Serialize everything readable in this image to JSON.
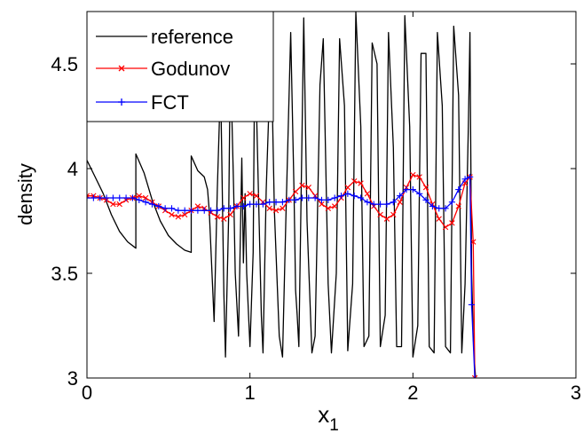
{
  "chart_data": {
    "type": "line",
    "title": "",
    "xlabel": "x",
    "xlabel_subscript": "1",
    "ylabel": "density",
    "xlim": [
      0,
      3
    ],
    "ylim": [
      3,
      4.75
    ],
    "xticks": [
      0,
      1,
      2,
      3
    ],
    "yticks": [
      3,
      3.5,
      4,
      4.5
    ],
    "xtick_labels": [
      "0",
      "1",
      "2",
      "3"
    ],
    "ytick_labels": [
      "3",
      "3.5",
      "4",
      "4.5"
    ],
    "grid": false,
    "legend_position": "top-left",
    "series": [
      {
        "name": "reference",
        "color": "#000000",
        "marker": "none",
        "x": [
          0,
          0.05,
          0.1,
          0.15,
          0.2,
          0.25,
          0.3,
          0.3,
          0.35,
          0.4,
          0.45,
          0.5,
          0.55,
          0.6,
          0.64,
          0.64,
          0.68,
          0.72,
          0.74,
          0.75,
          0.78,
          0.8,
          0.82,
          0.84,
          0.85,
          0.87,
          0.88,
          0.9,
          0.91,
          0.93,
          0.95,
          0.96,
          0.97,
          0.98,
          1.0,
          1.02,
          1.03,
          1.05,
          1.07,
          1.08,
          1.1,
          1.13,
          1.15,
          1.18,
          1.2,
          1.22,
          1.25,
          1.27,
          1.28,
          1.29,
          1.3,
          1.33,
          1.35,
          1.38,
          1.4,
          1.43,
          1.45,
          1.48,
          1.5,
          1.53,
          1.55,
          1.58,
          1.6,
          1.63,
          1.65,
          1.68,
          1.7,
          1.73,
          1.75,
          1.78,
          1.8,
          1.83,
          1.85,
          1.88,
          1.9,
          1.93,
          1.95,
          1.98,
          2.0,
          2.03,
          2.05,
          2.08,
          2.1,
          2.13,
          2.15,
          2.18,
          2.2,
          2.23,
          2.25,
          2.28,
          2.3,
          2.32,
          2.34,
          2.35,
          2.36,
          2.37,
          2.38,
          2.385
        ],
        "y": [
          4.04,
          3.96,
          3.88,
          3.78,
          3.7,
          3.65,
          3.62,
          4.07,
          3.98,
          3.85,
          3.75,
          3.68,
          3.64,
          3.61,
          3.6,
          4.06,
          3.99,
          3.96,
          3.9,
          3.8,
          3.27,
          3.9,
          4.42,
          3.4,
          3.1,
          3.8,
          4.55,
          3.9,
          3.5,
          3.2,
          4.05,
          3.55,
          3.88,
          3.5,
          3.15,
          3.6,
          4.62,
          3.95,
          3.3,
          3.12,
          3.9,
          4.6,
          3.8,
          3.2,
          3.1,
          3.75,
          4.65,
          3.9,
          3.42,
          3.3,
          3.15,
          4.72,
          3.75,
          3.12,
          3.2,
          4.4,
          4.62,
          3.45,
          3.12,
          3.5,
          4.62,
          4.3,
          3.13,
          3.45,
          4.75,
          4.2,
          3.15,
          3.2,
          4.6,
          4.5,
          3.15,
          3.3,
          4.65,
          4.1,
          3.15,
          3.15,
          4.73,
          4.2,
          3.1,
          3.25,
          4.55,
          4.55,
          3.15,
          3.12,
          4.65,
          4.3,
          3.15,
          3.12,
          4.68,
          4.35,
          3.12,
          3.45,
          4.2,
          4.65,
          3.5,
          3.2,
          3.05,
          3.0
        ]
      },
      {
        "name": "Godunov",
        "color": "#ff0000",
        "marker": "x",
        "x": [
          0,
          0.04,
          0.08,
          0.12,
          0.16,
          0.2,
          0.24,
          0.28,
          0.32,
          0.36,
          0.4,
          0.44,
          0.48,
          0.52,
          0.56,
          0.6,
          0.64,
          0.68,
          0.72,
          0.76,
          0.8,
          0.84,
          0.88,
          0.92,
          0.96,
          1.0,
          1.04,
          1.08,
          1.12,
          1.16,
          1.2,
          1.24,
          1.28,
          1.32,
          1.36,
          1.4,
          1.44,
          1.48,
          1.52,
          1.56,
          1.6,
          1.64,
          1.68,
          1.72,
          1.76,
          1.8,
          1.84,
          1.88,
          1.92,
          1.96,
          2.0,
          2.04,
          2.08,
          2.12,
          2.16,
          2.2,
          2.24,
          2.28,
          2.32,
          2.35,
          2.37,
          2.38
        ],
        "y": [
          3.87,
          3.87,
          3.86,
          3.85,
          3.83,
          3.83,
          3.85,
          3.86,
          3.87,
          3.86,
          3.84,
          3.82,
          3.8,
          3.78,
          3.77,
          3.78,
          3.8,
          3.82,
          3.81,
          3.79,
          3.77,
          3.76,
          3.78,
          3.82,
          3.86,
          3.88,
          3.87,
          3.84,
          3.81,
          3.8,
          3.81,
          3.85,
          3.89,
          3.92,
          3.91,
          3.87,
          3.83,
          3.81,
          3.82,
          3.86,
          3.91,
          3.94,
          3.93,
          3.88,
          3.82,
          3.78,
          3.76,
          3.78,
          3.84,
          3.91,
          3.97,
          3.96,
          3.91,
          3.83,
          3.76,
          3.72,
          3.74,
          3.82,
          3.93,
          3.96,
          3.65,
          3.0
        ]
      },
      {
        "name": "FCT",
        "color": "#0000ff",
        "marker": "+",
        "x": [
          0,
          0.04,
          0.08,
          0.12,
          0.16,
          0.2,
          0.24,
          0.28,
          0.32,
          0.36,
          0.4,
          0.44,
          0.48,
          0.52,
          0.56,
          0.6,
          0.64,
          0.68,
          0.72,
          0.76,
          0.8,
          0.84,
          0.88,
          0.92,
          0.96,
          1.0,
          1.04,
          1.08,
          1.12,
          1.16,
          1.2,
          1.24,
          1.28,
          1.32,
          1.36,
          1.4,
          1.44,
          1.48,
          1.52,
          1.56,
          1.6,
          1.64,
          1.68,
          1.72,
          1.76,
          1.8,
          1.84,
          1.88,
          1.92,
          1.96,
          2.0,
          2.04,
          2.08,
          2.12,
          2.16,
          2.2,
          2.24,
          2.28,
          2.32,
          2.35,
          2.36,
          2.38
        ],
        "y": [
          3.86,
          3.86,
          3.86,
          3.86,
          3.86,
          3.86,
          3.86,
          3.86,
          3.85,
          3.84,
          3.83,
          3.82,
          3.81,
          3.81,
          3.8,
          3.8,
          3.8,
          3.8,
          3.8,
          3.8,
          3.8,
          3.81,
          3.81,
          3.82,
          3.82,
          3.83,
          3.83,
          3.83,
          3.84,
          3.84,
          3.84,
          3.85,
          3.85,
          3.86,
          3.86,
          3.86,
          3.85,
          3.85,
          3.86,
          3.87,
          3.88,
          3.87,
          3.86,
          3.84,
          3.83,
          3.83,
          3.83,
          3.84,
          3.87,
          3.9,
          3.9,
          3.88,
          3.85,
          3.82,
          3.81,
          3.81,
          3.84,
          3.9,
          3.95,
          3.96,
          3.35,
          3.0
        ]
      }
    ]
  }
}
